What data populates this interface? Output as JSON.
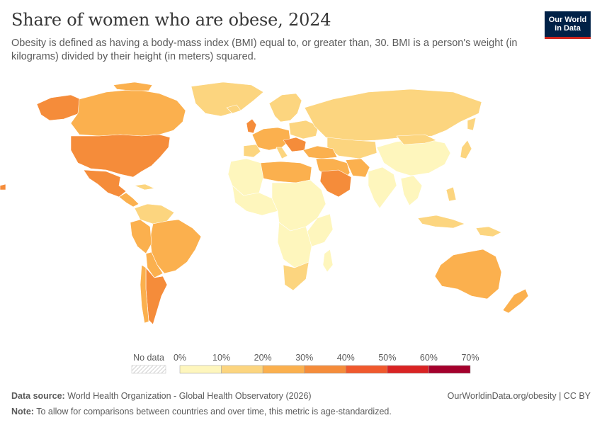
{
  "header": {
    "title": "Share of women who are obese, 2024",
    "subtitle": "Obesity is defined as having a body-mass index (BMI) equal to, or greater than, 30. BMI is a person's weight (in kilograms) divided by their height (in meters) squared.",
    "logo_line1": "Our World",
    "logo_line2": "in Data"
  },
  "legend": {
    "no_data_label": "No data",
    "ticks": [
      "0%",
      "10%",
      "20%",
      "30%",
      "40%",
      "50%",
      "60%",
      "70%"
    ],
    "bins": [
      {
        "from": 0,
        "to": 10,
        "color": "#fef6bd"
      },
      {
        "from": 10,
        "to": 20,
        "color": "#fcd57f"
      },
      {
        "from": 20,
        "to": 30,
        "color": "#fbb04e"
      },
      {
        "from": 30,
        "to": 40,
        "color": "#f58c3a"
      },
      {
        "from": 40,
        "to": 50,
        "color": "#f0592d"
      },
      {
        "from": 50,
        "to": 60,
        "color": "#d92323"
      },
      {
        "from": 60,
        "to": 70,
        "color": "#a4002c"
      }
    ]
  },
  "footer": {
    "source_label": "Data source:",
    "source_text": "World Health Organization - Global Health Observatory (2026)",
    "url_text": "OurWorldinData.org/obesity | CC BY",
    "note_label": "Note:",
    "note_text": "To allow for comparisons between countries and over time, this metric is age-standardized."
  }
}
